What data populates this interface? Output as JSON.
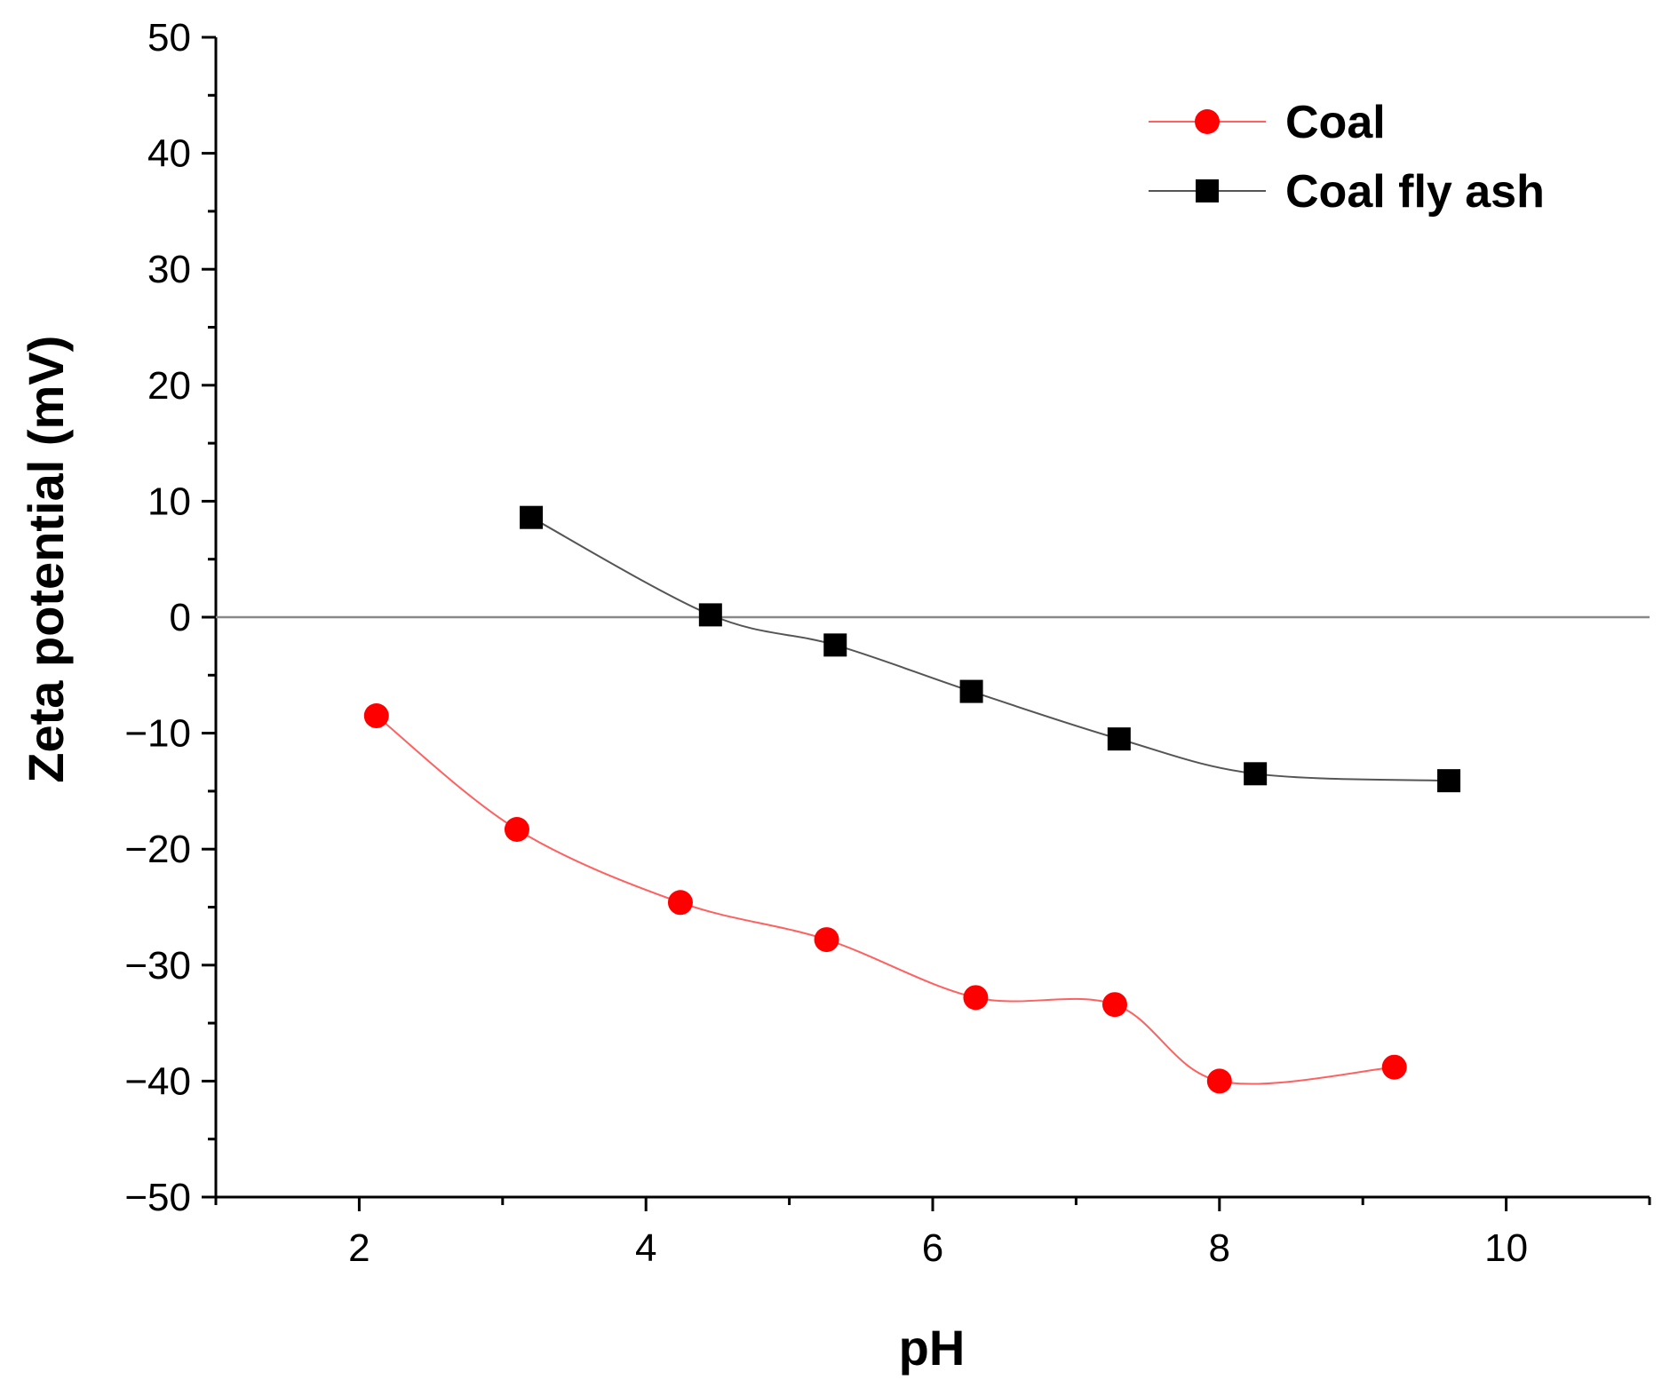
{
  "chart_data": {
    "type": "line",
    "xlabel": "pH",
    "ylabel": "Zeta potential (mV)",
    "xlim": [
      1,
      11
    ],
    "ylim": [
      -50,
      50
    ],
    "x_ticks": [
      2,
      4,
      6,
      8,
      10
    ],
    "y_ticks": [
      -50,
      -40,
      -30,
      -20,
      -10,
      0,
      10,
      20,
      30,
      40,
      50
    ],
    "x_tick_labels": [
      "2",
      "4",
      "6",
      "8",
      "10"
    ],
    "y_tick_labels": [
      "−50",
      "−40",
      "−30",
      "−20",
      "−10",
      "0",
      "10",
      "20",
      "30",
      "40",
      "50"
    ],
    "zero_line": true,
    "grid": false,
    "legend_position": "top-right",
    "series": [
      {
        "name": "Coal",
        "color": "#ff0000",
        "line_color": "#ff6060",
        "marker": "circle",
        "x": [
          2.12,
          3.1,
          4.24,
          5.26,
          6.3,
          7.27,
          8.0,
          9.22
        ],
        "y": [
          -8.5,
          -18.3,
          -24.6,
          -27.8,
          -32.8,
          -33.4,
          -40.0,
          -38.8
        ]
      },
      {
        "name": "Coal fly ash",
        "color": "#000000",
        "line_color": "#555555",
        "marker": "square",
        "x": [
          3.2,
          4.45,
          5.32,
          6.27,
          7.3,
          8.25,
          9.6
        ],
        "y": [
          8.6,
          0.2,
          -2.4,
          -6.4,
          -10.5,
          -13.5,
          -14.1
        ]
      }
    ]
  }
}
